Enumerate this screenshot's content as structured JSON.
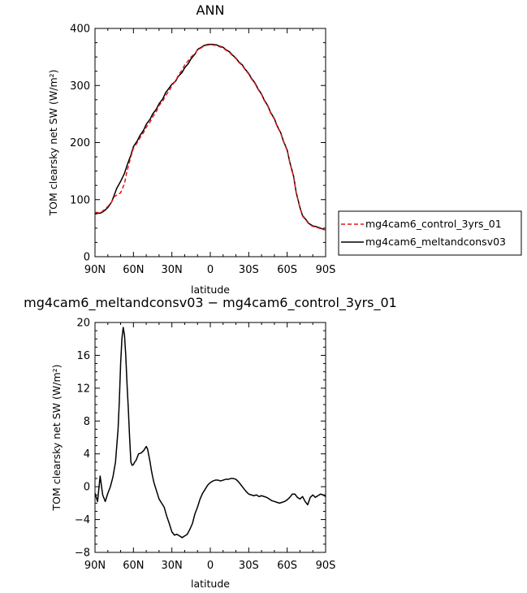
{
  "chart_data": [
    {
      "type": "line",
      "title": "ANN",
      "xlabel": "latitude",
      "ylabel": "TOM clearsky net SW (W/m²)",
      "ylim": [
        0,
        400
      ],
      "yticks": [
        "0",
        "100",
        "200",
        "300",
        "400"
      ],
      "xlim": [
        90,
        -90
      ],
      "xtick_values": [
        90,
        60,
        30,
        0,
        -30,
        -60,
        -90
      ],
      "xticks": [
        "90N",
        "60N",
        "30N",
        "0",
        "30S",
        "60S",
        "90S"
      ],
      "grid": false,
      "legend": "right",
      "x": [
        90,
        87,
        85,
        83,
        80,
        77,
        75,
        73,
        70,
        67,
        65,
        62,
        60,
        57,
        55,
        52,
        50,
        47,
        45,
        42,
        40,
        37,
        35,
        32,
        30,
        27,
        25,
        22,
        20,
        17,
        15,
        12,
        10,
        7,
        5,
        2,
        0,
        -2,
        -5,
        -7,
        -10,
        -12,
        -15,
        -17,
        -20,
        -22,
        -25,
        -27,
        -30,
        -32,
        -35,
        -37,
        -40,
        -42,
        -45,
        -47,
        -50,
        -52,
        -55,
        -57,
        -60,
        -62,
        -65,
        -67,
        -70,
        -72,
        -75,
        -77,
        -80,
        -82,
        -85,
        -87,
        -90
      ],
      "series": [
        {
          "name": "mg4cam6_control_3yrs_01",
          "color": "#e8141b",
          "dash": "dashed",
          "values": [
            78,
            77,
            78,
            82,
            88,
            96,
            105,
            108,
            112,
            128,
            150,
            175,
            190,
            200,
            208,
            218,
            227,
            236,
            245,
            255,
            265,
            273,
            282,
            291,
            300,
            308,
            318,
            327,
            336,
            344,
            350,
            356,
            362,
            366,
            369,
            371,
            371,
            371,
            370,
            368,
            366,
            362,
            358,
            353,
            347,
            341,
            335,
            328,
            320,
            312,
            303,
            294,
            284,
            274,
            263,
            252,
            241,
            229,
            216,
            202,
            186,
            165,
            140,
            112,
            85,
            71,
            63,
            57,
            53,
            52,
            50,
            48,
            47
          ]
        },
        {
          "name": "mg4cam6_meltandconsv03",
          "color": "#000000",
          "dash": "solid",
          "values": [
            77,
            76,
            77,
            80,
            86,
            96,
            108,
            120,
            132,
            146,
            160,
            178,
            193,
            203,
            212,
            222,
            232,
            241,
            250,
            259,
            268,
            277,
            287,
            296,
            302,
            308,
            316,
            323,
            331,
            339,
            347,
            355,
            363,
            367,
            370,
            372,
            372,
            372,
            371,
            369,
            367,
            363,
            359,
            354,
            348,
            342,
            336,
            329,
            321,
            313,
            304,
            295,
            285,
            275,
            264,
            253,
            242,
            230,
            217,
            203,
            187,
            166,
            141,
            113,
            86,
            72,
            64,
            58,
            54,
            53,
            51,
            49,
            47
          ]
        }
      ]
    },
    {
      "type": "line",
      "title": "mg4cam6_meltandconsv03 − mg4cam6_control_3yrs_01",
      "xlabel": "latitude",
      "ylabel": "TOM clearsky net SW (W/m²)",
      "ylim": [
        -8,
        20
      ],
      "yticks": [
        "−8",
        "−4",
        "0",
        "4",
        "8",
        "12",
        "16",
        "20"
      ],
      "xlim": [
        90,
        -90
      ],
      "xtick_values": [
        90,
        60,
        30,
        0,
        -30,
        -60,
        -90
      ],
      "xticks": [
        "90N",
        "60N",
        "30N",
        "0",
        "30S",
        "60S",
        "90S"
      ],
      "grid": false,
      "x": [
        90,
        88,
        86,
        84,
        82,
        80,
        78,
        76,
        74,
        72,
        71,
        70,
        69,
        68,
        67,
        66,
        65,
        64,
        63,
        62,
        61,
        60,
        59,
        58,
        56,
        54,
        52,
        50,
        49,
        48,
        47,
        46,
        45,
        44,
        43,
        42,
        40,
        38,
        36,
        34,
        32,
        30,
        28,
        26,
        24,
        22,
        20,
        18,
        16,
        14,
        12,
        10,
        8,
        6,
        4,
        2,
        0,
        -2,
        -4,
        -6,
        -8,
        -10,
        -12,
        -14,
        -16,
        -18,
        -20,
        -22,
        -24,
        -26,
        -28,
        -30,
        -32,
        -34,
        -36,
        -38,
        -40,
        -42,
        -44,
        -46,
        -48,
        -50,
        -52,
        -54,
        -56,
        -58,
        -60,
        -62,
        -64,
        -66,
        -68,
        -70,
        -72,
        -74,
        -76,
        -78,
        -80,
        -82,
        -84,
        -86,
        -88,
        -90
      ],
      "values": [
        -0.8,
        -1.8,
        1.3,
        -1.0,
        -1.8,
        -0.8,
        0.0,
        1.2,
        3.0,
        7.0,
        10.5,
        15.0,
        18.0,
        19.4,
        18.5,
        16.0,
        12.5,
        9.5,
        6.0,
        3.0,
        2.6,
        2.7,
        3.0,
        3.2,
        4.0,
        4.1,
        4.4,
        4.9,
        4.6,
        3.8,
        3.0,
        2.0,
        1.2,
        0.5,
        0.0,
        -0.5,
        -1.5,
        -2.0,
        -2.5,
        -3.6,
        -4.5,
        -5.5,
        -5.9,
        -5.8,
        -6.0,
        -6.2,
        -6.0,
        -5.8,
        -5.2,
        -4.5,
        -3.3,
        -2.5,
        -1.5,
        -0.8,
        -0.3,
        0.2,
        0.5,
        0.7,
        0.8,
        0.8,
        0.7,
        0.8,
        0.9,
        0.9,
        1.0,
        1.0,
        0.9,
        0.6,
        0.2,
        -0.2,
        -0.6,
        -0.9,
        -1.0,
        -1.1,
        -1.0,
        -1.2,
        -1.1,
        -1.2,
        -1.3,
        -1.5,
        -1.7,
        -1.8,
        -1.9,
        -2.0,
        -1.9,
        -1.8,
        -1.6,
        -1.3,
        -0.9,
        -0.9,
        -1.3,
        -1.5,
        -1.2,
        -1.8,
        -2.2,
        -1.3,
        -1.0,
        -1.3,
        -1.1,
        -0.9,
        -1.0,
        -1.2
      ]
    }
  ]
}
